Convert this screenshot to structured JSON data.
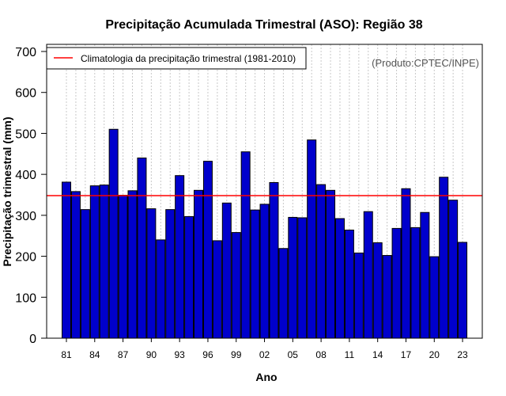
{
  "chart_data": {
    "type": "bar",
    "title": "Precipitação Acumulada Trimestral (ASO): Região 38",
    "xlabel": "Ano",
    "ylabel": "Precipitação trimestral (mm)",
    "ylim": [
      0,
      700
    ],
    "yticks": [
      0,
      100,
      200,
      300,
      400,
      500,
      600,
      700
    ],
    "grid": "vertical dotted",
    "years": [
      1981,
      1982,
      1983,
      1984,
      1985,
      1986,
      1987,
      1988,
      1989,
      1990,
      1991,
      1992,
      1993,
      1994,
      1995,
      1996,
      1997,
      1998,
      1999,
      2000,
      2001,
      2002,
      2003,
      2004,
      2005,
      2006,
      2007,
      2008,
      2009,
      2010,
      2011,
      2012,
      2013,
      2014,
      2015,
      2016,
      2017,
      2018,
      2019,
      2020,
      2021,
      2022,
      2023
    ],
    "values": [
      381,
      358,
      314,
      372,
      374,
      510,
      349,
      360,
      440,
      316,
      240,
      314,
      397,
      297,
      361,
      432,
      238,
      330,
      258,
      455,
      313,
      327,
      380,
      219,
      295,
      294,
      484,
      375,
      361,
      292,
      264,
      208,
      309,
      233,
      202,
      268,
      365,
      270,
      307,
      199,
      393,
      337,
      234
    ],
    "xticks": [
      "81",
      "84",
      "87",
      "90",
      "93",
      "96",
      "99",
      "02",
      "05",
      "08",
      "11",
      "14",
      "17",
      "20",
      "23"
    ],
    "bar_color": "#0000cc",
    "climatology": {
      "value": 348,
      "color": "#ff0000",
      "label": "Climatologia da precipitação trimestral (1981-2010)"
    },
    "credit": "(Produto:CPTEC/INPE)"
  }
}
